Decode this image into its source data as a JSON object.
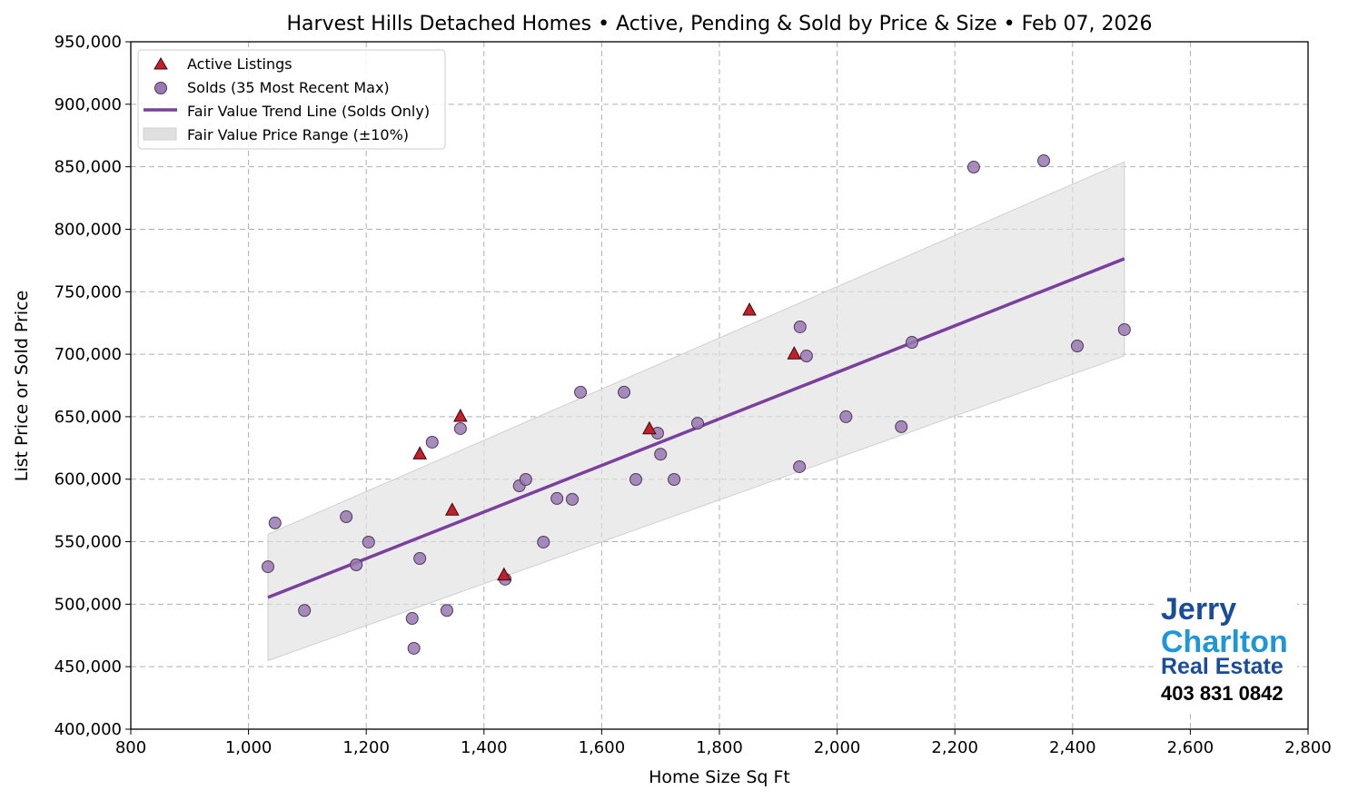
{
  "chart_data": {
    "type": "scatter",
    "title": "Harvest Hills Detached Homes • Active, Pending & Sold by Price & Size • Feb 07, 2026",
    "xlabel": "Home Size Sq Ft",
    "ylabel": "List Price or Sold Price",
    "xlim": [
      800,
      2800
    ],
    "ylim": [
      400000,
      950000
    ],
    "xticks": [
      800,
      1000,
      1200,
      1400,
      1600,
      1800,
      2000,
      2200,
      2400,
      2600,
      2800
    ],
    "xtick_labels": [
      "800",
      "1,000",
      "1,200",
      "1,400",
      "1,600",
      "1,800",
      "2,000",
      "2,200",
      "2,400",
      "2,600",
      "2,800"
    ],
    "yticks": [
      400000,
      450000,
      500000,
      550000,
      600000,
      650000,
      700000,
      750000,
      800000,
      850000,
      900000,
      950000
    ],
    "ytick_labels": [
      "400,000",
      "450,000",
      "500,000",
      "550,000",
      "600,000",
      "650,000",
      "700,000",
      "750,000",
      "800,000",
      "850,000",
      "900,000",
      "950,000"
    ],
    "grid": true,
    "legend_placement": "top-left",
    "colors": {
      "active": "#c1202c",
      "sold": "#9a78b3",
      "trend": "#7b3f9d",
      "range": "#e0e0e0"
    },
    "series": [
      {
        "name": "Active Listings",
        "marker": "triangle",
        "points": [
          [
            1291,
            619900
          ],
          [
            1360,
            649900
          ],
          [
            1346,
            574900
          ],
          [
            1434,
            523000
          ],
          [
            1681,
            639900
          ],
          [
            1851,
            734900
          ],
          [
            1927,
            699900
          ]
        ]
      },
      {
        "name": "Solds (35 Most Recent Max)",
        "marker": "circle",
        "points": [
          [
            1033,
            530000
          ],
          [
            1045,
            565000
          ],
          [
            1095,
            495000
          ],
          [
            1166,
            570000
          ],
          [
            1183,
            531500
          ],
          [
            1204,
            549700
          ],
          [
            1278,
            488600
          ],
          [
            1281,
            464700
          ],
          [
            1291,
            536600
          ],
          [
            1312,
            629600
          ],
          [
            1337,
            495000
          ],
          [
            1360,
            640500
          ],
          [
            1436,
            520000
          ],
          [
            1460,
            594700
          ],
          [
            1471,
            599800
          ],
          [
            1501,
            549700
          ],
          [
            1524,
            584600
          ],
          [
            1550,
            583900
          ],
          [
            1564,
            669600
          ],
          [
            1638,
            669600
          ],
          [
            1658,
            599800
          ],
          [
            1695,
            636900
          ],
          [
            1700,
            620000
          ],
          [
            1723,
            599800
          ],
          [
            1763,
            644800
          ],
          [
            1937,
            721900
          ],
          [
            1936,
            610000
          ],
          [
            1948,
            698600
          ],
          [
            2015,
            650000
          ],
          [
            2109,
            642000
          ],
          [
            2127,
            709500
          ],
          [
            2232,
            849700
          ],
          [
            2351,
            854800
          ],
          [
            2408,
            706600
          ],
          [
            2488,
            719700
          ]
        ]
      },
      {
        "name": "Fair Value Trend Line (Solds Only)",
        "type": "line",
        "points": [
          [
            1033,
            505400
          ],
          [
            2488,
            776400
          ]
        ]
      },
      {
        "name": "Fair Value Price Range (±10%)",
        "type": "band",
        "pct": 10
      }
    ]
  },
  "logo": {
    "line1": "Jerry",
    "line2": "Charlton",
    "line3": "Real Estate",
    "phone": "403 831 0842"
  }
}
